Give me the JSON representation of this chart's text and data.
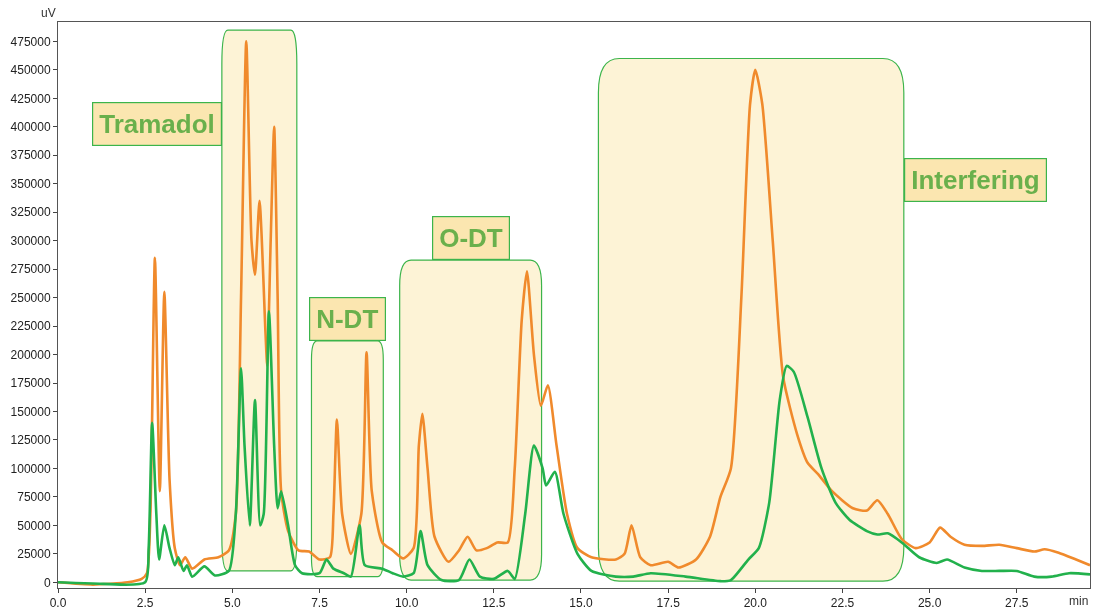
{
  "chart_data": {
    "type": "line",
    "xlabel": "min",
    "ylabel": "uV",
    "xlim": [
      0,
      29.6
    ],
    "ylim": [
      -5000,
      492000
    ],
    "xticks": [
      {
        "value": 0,
        "label": "0.0"
      },
      {
        "value": 2.5,
        "label": "2.5"
      },
      {
        "value": 5,
        "label": "5.0"
      },
      {
        "value": 7.5,
        "label": "7.5"
      },
      {
        "value": 10,
        "label": "10.0"
      },
      {
        "value": 12.5,
        "label": "12.5"
      },
      {
        "value": 15,
        "label": "15.0"
      },
      {
        "value": 17.5,
        "label": "17.5"
      },
      {
        "value": 20,
        "label": "20.0"
      },
      {
        "value": 22.5,
        "label": "22.5"
      },
      {
        "value": 25,
        "label": "25.0"
      },
      {
        "value": 27.5,
        "label": "27.5"
      }
    ],
    "yticks": [
      0,
      25000,
      50000,
      75000,
      100000,
      125000,
      150000,
      175000,
      200000,
      225000,
      250000,
      275000,
      300000,
      325000,
      350000,
      375000,
      400000,
      425000,
      450000,
      475000
    ],
    "grid": false,
    "legend": false,
    "series": [
      {
        "color": "#f08a2c",
        "x": [
          0,
          1.0,
          2.0,
          2.4,
          2.55,
          2.65,
          2.78,
          2.92,
          3.05,
          3.2,
          3.35,
          3.5,
          3.65,
          3.85,
          4.2,
          4.6,
          4.9,
          5.1,
          5.25,
          5.4,
          5.55,
          5.65,
          5.78,
          5.95,
          6.0,
          6.1,
          6.2,
          6.3,
          6.4,
          6.6,
          6.9,
          7.2,
          7.5,
          7.8,
          7.9,
          8.0,
          8.15,
          8.4,
          8.7,
          8.85,
          9.0,
          9.3,
          9.6,
          9.9,
          10.2,
          10.35,
          10.45,
          10.6,
          10.8,
          11.2,
          11.5,
          11.75,
          12.0,
          12.3,
          12.6,
          12.9,
          13.1,
          13.3,
          13.45,
          13.65,
          13.85,
          14.05,
          14.3,
          14.6,
          14.9,
          15.3,
          16.0,
          16.25,
          16.45,
          16.7,
          17.0,
          17.5,
          17.8,
          18.3,
          18.7,
          19.0,
          19.3,
          19.6,
          19.85,
          20.0,
          20.2,
          20.5,
          20.8,
          21.2,
          21.5,
          21.8,
          22.2,
          22.8,
          23.2,
          23.5,
          23.8,
          24.2,
          24.6,
          25.0,
          25.3,
          25.6,
          26.0,
          26.5,
          27.0,
          27.5,
          28.0,
          28.3,
          28.7,
          29.2,
          29.6
        ],
        "values": [
          0,
          -2000,
          0,
          3000,
          8000,
          60000,
          285000,
          80000,
          255000,
          90000,
          30000,
          15000,
          22000,
          12000,
          20000,
          22000,
          28000,
          60000,
          250000,
          475000,
          300000,
          270000,
          335000,
          220000,
          190000,
          300000,
          400000,
          250000,
          80000,
          45000,
          28000,
          27000,
          20000,
          22000,
          60000,
          143000,
          60000,
          25000,
          60000,
          202000,
          80000,
          35000,
          28000,
          21000,
          30000,
          120000,
          148000,
          100000,
          40000,
          18000,
          28000,
          40000,
          28000,
          30000,
          35000,
          35000,
          100000,
          230000,
          273000,
          200000,
          155000,
          173000,
          120000,
          60000,
          30000,
          22000,
          20000,
          25000,
          50000,
          22000,
          15000,
          18000,
          13000,
          20000,
          40000,
          75000,
          100000,
          250000,
          420000,
          450000,
          420000,
          300000,
          180000,
          130000,
          105000,
          95000,
          80000,
          65000,
          63000,
          72000,
          60000,
          38000,
          30000,
          35000,
          48000,
          40000,
          33000,
          32000,
          33000,
          30000,
          27000,
          29000,
          26000,
          20000,
          15000
        ]
      },
      {
        "color": "#22b14c",
        "x": [
          0,
          1.0,
          2.5,
          2.6,
          2.7,
          2.82,
          2.9,
          3.05,
          3.2,
          3.35,
          3.45,
          3.6,
          3.7,
          3.85,
          4.2,
          4.5,
          4.9,
          5.1,
          5.25,
          5.35,
          5.5,
          5.65,
          5.8,
          5.9,
          6.05,
          6.2,
          6.3,
          6.4,
          6.6,
          6.8,
          7.0,
          7.5,
          7.7,
          7.9,
          8.2,
          8.4,
          8.65,
          8.8,
          9.3,
          9.6,
          9.9,
          10.2,
          10.4,
          10.6,
          11.0,
          11.5,
          11.8,
          12.1,
          12.5,
          12.9,
          13.1,
          13.4,
          13.65,
          13.9,
          14.0,
          14.25,
          14.5,
          14.9,
          15.3,
          16.0,
          16.5,
          17.0,
          18.0,
          19.0,
          19.3,
          19.8,
          20.1,
          20.4,
          20.7,
          20.9,
          21.1,
          21.5,
          21.9,
          22.3,
          22.7,
          23.2,
          23.5,
          23.8,
          24.2,
          24.7,
          25.2,
          25.5,
          26.0,
          26.5,
          27.0,
          27.5,
          28.0,
          28.5,
          29.0,
          29.6
        ],
        "values": [
          0,
          -1000,
          0,
          30000,
          140000,
          60000,
          20000,
          50000,
          30000,
          15000,
          22000,
          10000,
          15000,
          5000,
          14000,
          6000,
          10000,
          60000,
          188000,
          120000,
          50000,
          160000,
          50000,
          60000,
          238000,
          120000,
          65000,
          80000,
          50000,
          15000,
          8000,
          8000,
          20000,
          12000,
          8000,
          5000,
          50000,
          15000,
          12000,
          8000,
          5000,
          8000,
          45000,
          15000,
          2000,
          2000,
          20000,
          5000,
          3000,
          10000,
          3000,
          60000,
          120000,
          100000,
          85000,
          97000,
          60000,
          25000,
          10000,
          5000,
          5000,
          8000,
          5000,
          1000,
          2000,
          20000,
          30000,
          70000,
          160000,
          190000,
          185000,
          145000,
          100000,
          70000,
          55000,
          45000,
          42000,
          43000,
          35000,
          22000,
          17000,
          20000,
          13000,
          10000,
          10000,
          10000,
          5000,
          5000,
          8000,
          7000
        ]
      }
    ],
    "bands": [
      {
        "axis": "x",
        "from": 4.7,
        "to": 6.85,
        "label": "Tramadol",
        "color": "#fdf3d6"
      },
      {
        "axis": "x",
        "from": 7.27,
        "to": 9.33,
        "label": "N-DT",
        "color": "#fdf3d6"
      },
      {
        "axis": "x",
        "from": 9.8,
        "to": 13.87,
        "label": "O-DT",
        "color": "#fdf3d6"
      },
      {
        "axis": "x",
        "from": 15.5,
        "to": 24.26,
        "label": "Interfering",
        "color": "#fdf3d6"
      }
    ]
  }
}
